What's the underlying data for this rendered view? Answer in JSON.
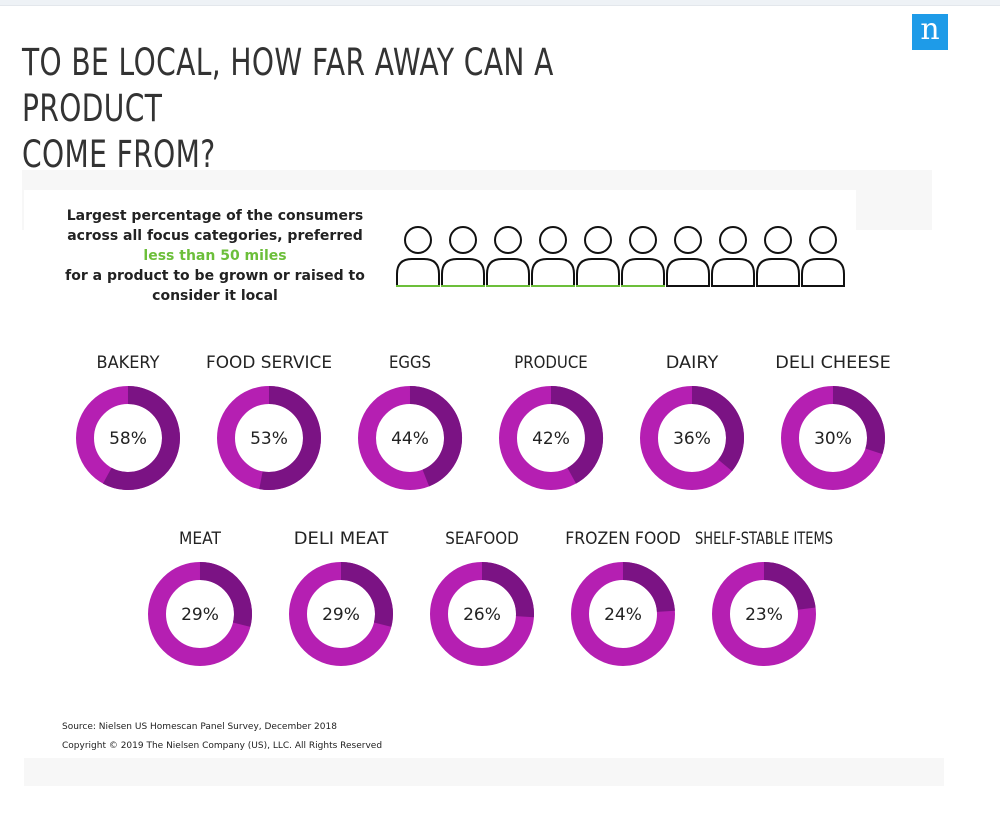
{
  "header": {
    "title_line1": "TO BE LOCAL, HOW FAR AWAY CAN A PRODUCT",
    "title_line2": "COME FROM?",
    "logo_letter": "n",
    "brand_color": "#1e9be8"
  },
  "intro": {
    "line1": "Largest percentage of the consumers",
    "line2": "across all focus categories, preferred",
    "highlight": "less than 50 miles",
    "line3": "for a product to be grown or raised to",
    "line4": "consider it local",
    "highlight_color": "#6cbf3a"
  },
  "people_icons": {
    "total": 10,
    "highlighted": 6,
    "icon": "person-icon"
  },
  "chart_data": {
    "type": "donut",
    "unit": "%",
    "colors": {
      "value": "#7b1384",
      "remainder": "#b51fb2"
    },
    "rows": [
      {
        "categories": [
          "BAKERY",
          "FOOD SERVICE",
          "EGGS",
          "PRODUCE",
          "DAIRY",
          "DELI CHEESE"
        ],
        "values": [
          58,
          53,
          44,
          42,
          36,
          30
        ],
        "labels": [
          "58%",
          "53%",
          "44%",
          "42%",
          "36%",
          "30%"
        ]
      },
      {
        "categories": [
          "MEAT",
          "DELI MEAT",
          "SEAFOOD",
          "FROZEN FOOD",
          "SHELF-STABLE ITEMS"
        ],
        "values": [
          29,
          29,
          26,
          24,
          23
        ],
        "labels": [
          "29%",
          "29%",
          "26%",
          "24%",
          "23%"
        ]
      }
    ]
  },
  "footer": {
    "source": "Source: Nielsen US Homescan Panel Survey, December 2018",
    "copyright": "Copyright © 2019 The Nielsen Company (US), LLC. All Rights Reserved"
  }
}
